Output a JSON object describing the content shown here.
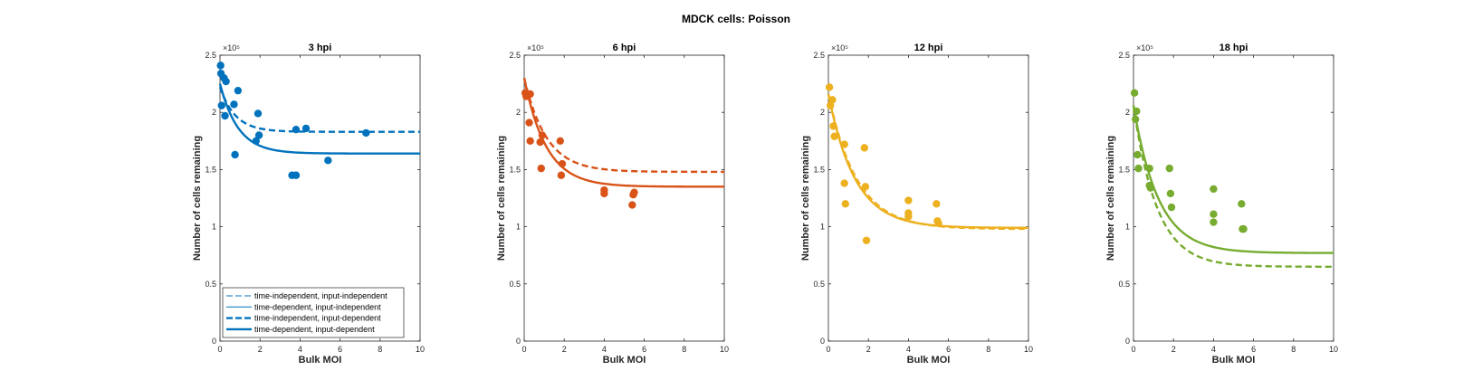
{
  "figure_title": "MDCK cells: Poisson",
  "chart_data": [
    {
      "type": "scatter",
      "title": "3 hpi",
      "xlabel": "Bulk MOI",
      "ylabel": "Number of cells remaining",
      "y_exponent": "×10⁵",
      "xlim": [
        0,
        10
      ],
      "ylim": [
        0,
        2.5
      ],
      "xticks": [
        0,
        2,
        4,
        6,
        8,
        10
      ],
      "yticks": [
        0,
        0.5,
        1,
        1.5,
        2,
        2.5
      ],
      "grid": false,
      "color": "#0072BD",
      "points": [
        [
          0.03,
          2.41
        ],
        [
          0.05,
          2.34
        ],
        [
          0.08,
          2.06
        ],
        [
          0.2,
          2.3
        ],
        [
          0.25,
          1.97
        ],
        [
          0.3,
          2.27
        ],
        [
          0.7,
          2.07
        ],
        [
          0.75,
          1.63
        ],
        [
          0.9,
          2.19
        ],
        [
          1.8,
          1.75
        ],
        [
          1.9,
          1.99
        ],
        [
          1.95,
          1.8
        ],
        [
          3.6,
          1.45
        ],
        [
          3.8,
          1.45
        ],
        [
          3.8,
          1.85
        ],
        [
          4.3,
          1.86
        ],
        [
          5.4,
          1.58
        ],
        [
          7.3,
          1.82
        ]
      ],
      "fits": [
        {
          "plateau": 1.83,
          "start": 2.22,
          "rate": 1.3
        },
        {
          "plateau": 1.64,
          "start": 2.25,
          "rate": 1.1
        }
      ],
      "legend": {
        "placement": "bottom-left",
        "entries": [
          "time-independent, input-independent",
          "time-dependent, input-independent",
          "time-independent, input-dependent",
          "time-dependent, input-dependent"
        ]
      }
    },
    {
      "type": "scatter",
      "title": "6 hpi",
      "xlabel": "Bulk MOI",
      "ylabel": "Number of cells remaining",
      "y_exponent": "×10⁵",
      "xlim": [
        0,
        10
      ],
      "ylim": [
        0,
        2.5
      ],
      "xticks": [
        0,
        2,
        4,
        6,
        8,
        10
      ],
      "yticks": [
        0,
        0.5,
        1,
        1.5,
        2,
        2.5
      ],
      "grid": false,
      "color": "#D95319",
      "points": [
        [
          0.05,
          2.17
        ],
        [
          0.1,
          2.14
        ],
        [
          0.2,
          2.15
        ],
        [
          0.25,
          1.91
        ],
        [
          0.3,
          2.16
        ],
        [
          0.3,
          1.75
        ],
        [
          0.8,
          1.74
        ],
        [
          0.85,
          1.51
        ],
        [
          0.9,
          1.8
        ],
        [
          1.8,
          1.75
        ],
        [
          1.85,
          1.45
        ],
        [
          1.9,
          1.55
        ],
        [
          4.0,
          1.32
        ],
        [
          4.0,
          1.29
        ],
        [
          5.4,
          1.19
        ],
        [
          5.45,
          1.28
        ],
        [
          5.5,
          1.3
        ]
      ],
      "fits": [
        {
          "plateau": 1.48,
          "start": 2.3,
          "rate": 0.9
        },
        {
          "plateau": 1.35,
          "start": 2.3,
          "rate": 0.9
        }
      ]
    },
    {
      "type": "scatter",
      "title": "12 hpi",
      "xlabel": "Bulk MOI",
      "ylabel": "Number of cells remaining",
      "y_exponent": "×10⁵",
      "xlim": [
        0,
        10
      ],
      "ylim": [
        0,
        2.5
      ],
      "xticks": [
        0,
        2,
        4,
        6,
        8,
        10
      ],
      "yticks": [
        0,
        0.5,
        1,
        1.5,
        2,
        2.5
      ],
      "grid": false,
      "color": "#EDB120",
      "points": [
        [
          0.05,
          2.22
        ],
        [
          0.1,
          2.06
        ],
        [
          0.2,
          2.11
        ],
        [
          0.25,
          1.88
        ],
        [
          0.3,
          1.79
        ],
        [
          0.8,
          1.72
        ],
        [
          0.8,
          1.38
        ],
        [
          0.85,
          1.2
        ],
        [
          1.8,
          1.69
        ],
        [
          1.85,
          1.35
        ],
        [
          1.9,
          0.88
        ],
        [
          4.0,
          1.23
        ],
        [
          4.0,
          1.12
        ],
        [
          4.0,
          1.09
        ],
        [
          5.4,
          1.2
        ],
        [
          5.45,
          1.05
        ],
        [
          5.5,
          1.03
        ]
      ],
      "fits": [
        {
          "plateau": 0.98,
          "start": 2.16,
          "rate": 0.7
        },
        {
          "plateau": 0.99,
          "start": 2.16,
          "rate": 0.75
        }
      ]
    },
    {
      "type": "scatter",
      "title": "18 hpi",
      "xlabel": "Bulk MOI",
      "ylabel": "Number of cells remaining",
      "y_exponent": "×10⁵",
      "xlim": [
        0,
        10
      ],
      "ylim": [
        0,
        2.5
      ],
      "xticks": [
        0,
        2,
        4,
        6,
        8,
        10
      ],
      "yticks": [
        0,
        0.5,
        1,
        1.5,
        2,
        2.5
      ],
      "grid": false,
      "color": "#77AC30",
      "points": [
        [
          0.05,
          2.17
        ],
        [
          0.1,
          1.94
        ],
        [
          0.15,
          2.01
        ],
        [
          0.2,
          1.63
        ],
        [
          0.25,
          1.51
        ],
        [
          0.8,
          1.51
        ],
        [
          0.8,
          1.36
        ],
        [
          0.85,
          1.34
        ],
        [
          1.8,
          1.51
        ],
        [
          1.85,
          1.29
        ],
        [
          1.9,
          1.17
        ],
        [
          4.0,
          1.33
        ],
        [
          4.0,
          1.11
        ],
        [
          4.0,
          1.04
        ],
        [
          5.4,
          1.2
        ],
        [
          5.45,
          0.98
        ],
        [
          5.5,
          0.98
        ]
      ],
      "fits": [
        {
          "plateau": 0.65,
          "start": 2.06,
          "rate": 0.85
        },
        {
          "plateau": 0.77,
          "start": 2.06,
          "rate": 0.8
        }
      ]
    }
  ]
}
